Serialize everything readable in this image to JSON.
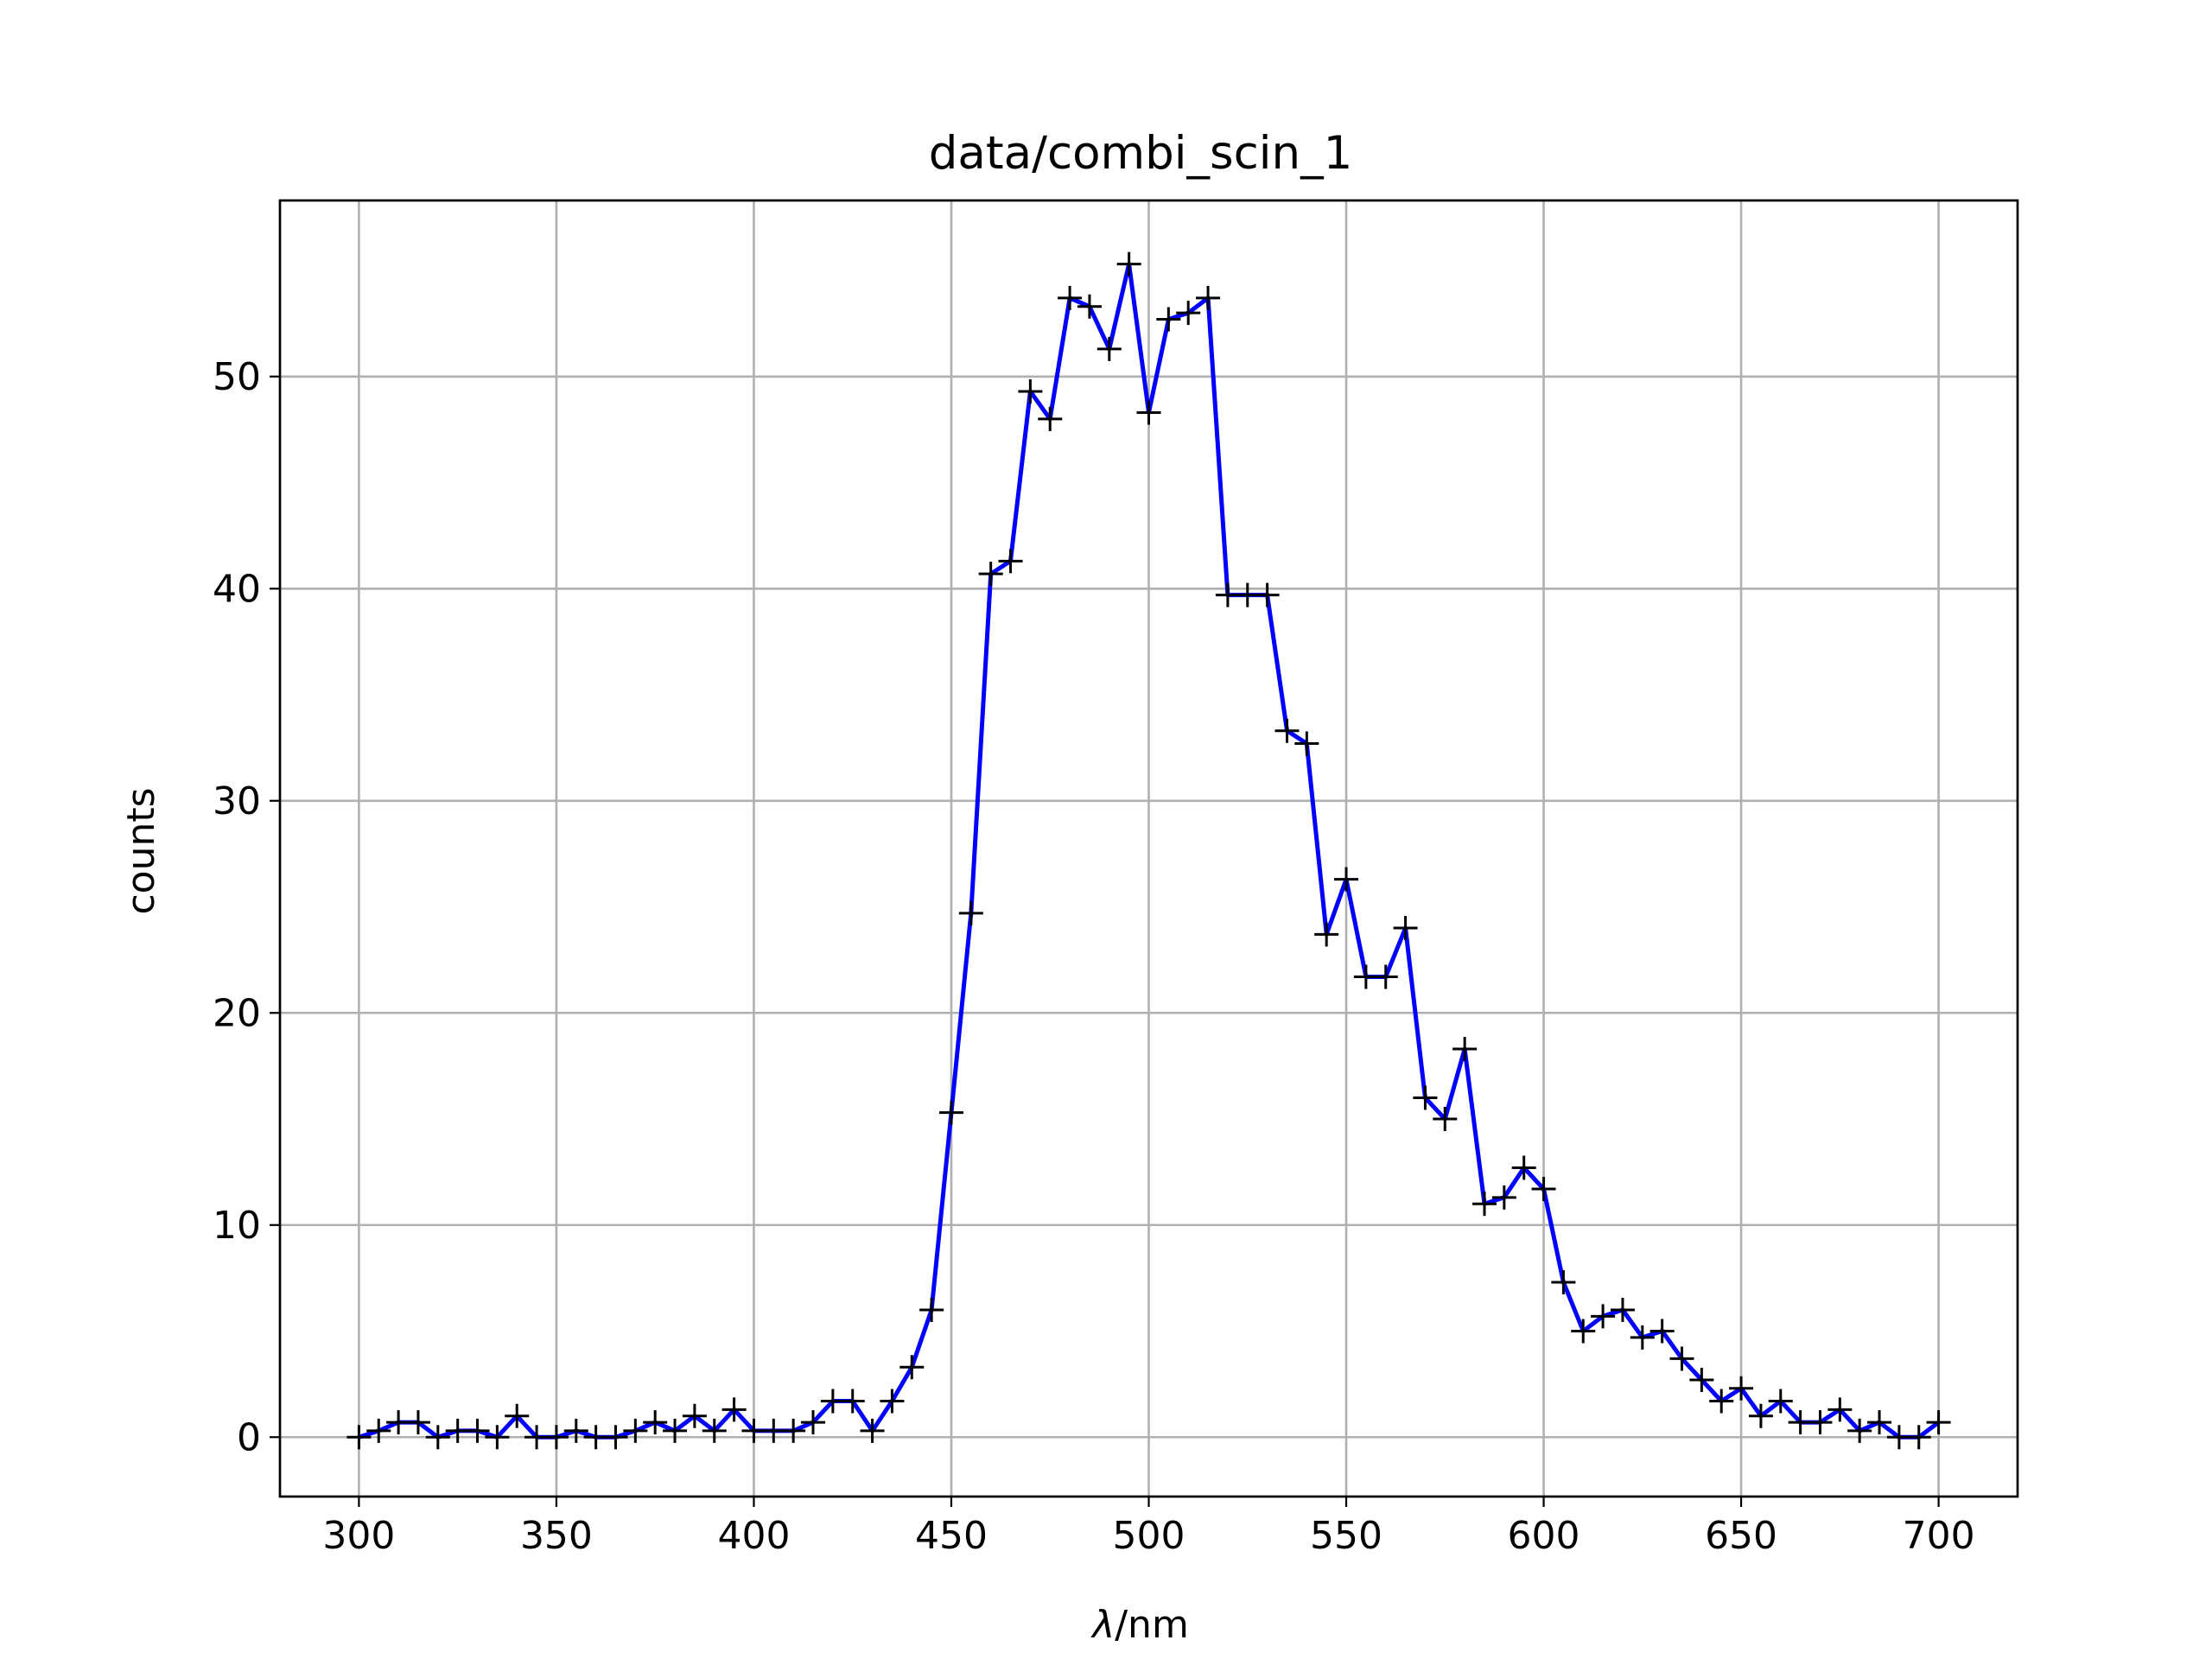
{
  "chart_data": {
    "type": "line",
    "title": "data/combi_scin_1",
    "xlabel_symbol": "λ",
    "xlabel_unit": "/nm",
    "ylabel": "counts",
    "xlim": [
      280,
      720
    ],
    "ylim": [
      -2.8,
      58.3
    ],
    "xticks": [
      300,
      350,
      400,
      450,
      500,
      550,
      600,
      650,
      700
    ],
    "yticks": [
      0,
      10,
      20,
      30,
      40,
      50
    ],
    "grid": true,
    "line_color": "#0000ff",
    "marker_color": "#000000",
    "marker": "plus",
    "series": [
      {
        "x": [
          300,
          305,
          310,
          315,
          320,
          325,
          330,
          335,
          340,
          345,
          350,
          355,
          360,
          365,
          370,
          375,
          380,
          385,
          390,
          395,
          400,
          405,
          410,
          415,
          420,
          425,
          430,
          435,
          440,
          445,
          450,
          455,
          460,
          465,
          470,
          475,
          480,
          485,
          490,
          495,
          500,
          505,
          510,
          515,
          520,
          525,
          530,
          535,
          540,
          545,
          550,
          555,
          560,
          565,
          570,
          575,
          580,
          585,
          590,
          595,
          600,
          605,
          610,
          615,
          620,
          625,
          630,
          635,
          640,
          645,
          650,
          655,
          660,
          665,
          670,
          675,
          680,
          685,
          690,
          695,
          700
        ],
        "values": [
          0,
          0.3,
          0.7,
          0.7,
          0,
          0.3,
          0.3,
          0,
          1,
          0,
          0,
          0.3,
          0,
          0,
          0.3,
          0.7,
          0.3,
          1,
          0.3,
          1.3,
          0.3,
          0.3,
          0.3,
          0.7,
          1.7,
          1.7,
          0.3,
          1.7,
          3.3,
          6,
          15.3,
          24.7,
          40.7,
          41.3,
          49.3,
          48,
          53.7,
          53.3,
          51.3,
          55.3,
          48.3,
          52.7,
          53,
          53.7,
          39.7,
          39.7,
          39.7,
          33.3,
          32.7,
          23.7,
          26.3,
          21.7,
          21.7,
          24,
          16,
          15,
          18.3,
          11,
          11.3,
          12.7,
          11.7,
          7.3,
          5,
          5.7,
          6,
          4.7,
          5,
          3.7,
          2.7,
          1.7,
          2.3,
          1,
          1.7,
          0.7,
          0.7,
          1.3,
          0.3,
          0.7,
          0,
          0,
          0.7
        ]
      }
    ]
  }
}
